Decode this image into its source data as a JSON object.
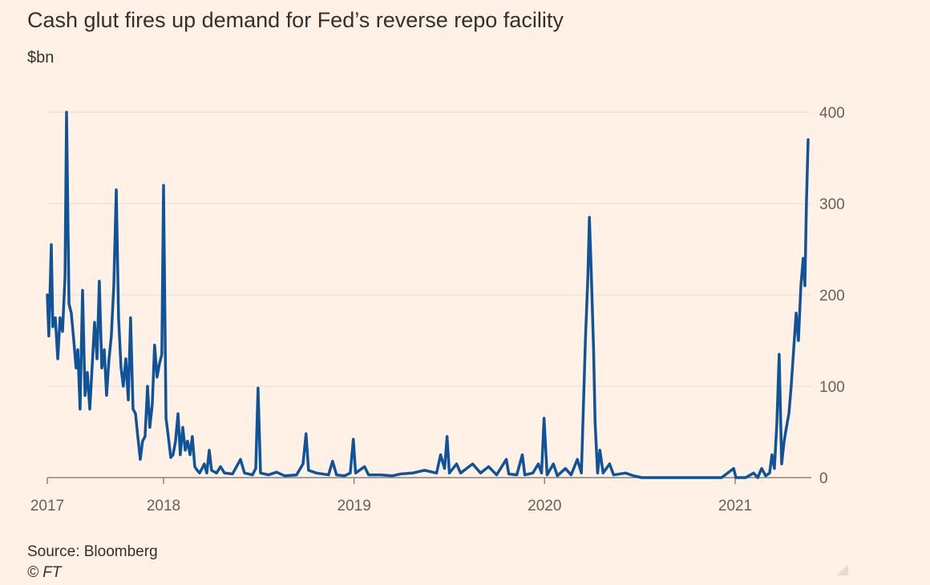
{
  "chart_data": {
    "type": "line",
    "title": "Cash glut fires up demand for Fed’s reverse repo facility",
    "subtitle": "$bn",
    "source": "Source: Bloomberg",
    "credit": "© FT",
    "color": "#0f5499",
    "xlim": [
      2017.39,
      2021.383
    ],
    "xticks": [
      {
        "value": 2017.39,
        "label": "2017"
      },
      2018,
      2019,
      2020,
      2021
    ],
    "ylim": [
      0,
      400
    ],
    "yticks": [
      0,
      100,
      200,
      300,
      400
    ],
    "grid": true,
    "x": [
      2017.39,
      2017.398,
      2017.411,
      2017.419,
      2017.432,
      2017.445,
      2017.457,
      2017.47,
      2017.483,
      2017.491,
      2017.504,
      2017.516,
      2017.529,
      2017.541,
      2017.55,
      2017.562,
      2017.575,
      2017.588,
      2017.6,
      2017.613,
      2017.625,
      2017.638,
      2017.651,
      2017.663,
      2017.676,
      2017.689,
      2017.701,
      2017.714,
      2017.726,
      2017.739,
      2017.752,
      2017.764,
      2017.777,
      2017.789,
      2017.802,
      2017.815,
      2017.827,
      2017.84,
      2017.853,
      2017.865,
      2017.878,
      2017.89,
      2017.903,
      2017.916,
      2017.928,
      2017.941,
      2017.953,
      2017.966,
      2017.979,
      2017.991,
      2018.0,
      2018.013,
      2018.025,
      2018.038,
      2018.05,
      2018.063,
      2018.076,
      2018.088,
      2018.101,
      2018.114,
      2018.126,
      2018.139,
      2018.151,
      2018.164,
      2018.177,
      2018.189,
      2018.202,
      2018.214,
      2018.227,
      2018.24,
      2018.252,
      2018.278,
      2018.299,
      2018.32,
      2018.362,
      2018.404,
      2018.425,
      2018.467,
      2018.484,
      2018.496,
      2018.509,
      2018.551,
      2018.593,
      2018.635,
      2018.698,
      2018.732,
      2018.748,
      2018.761,
      2018.803,
      2018.866,
      2018.887,
      2018.908,
      2018.95,
      2018.98,
      2018.996,
      2019.008,
      2019.055,
      2019.076,
      2019.139,
      2019.202,
      2019.244,
      2019.307,
      2019.37,
      2019.433,
      2019.454,
      2019.475,
      2019.488,
      2019.5,
      2019.538,
      2019.559,
      2019.622,
      2019.664,
      2019.706,
      2019.748,
      2019.799,
      2019.812,
      2019.854,
      2019.883,
      2019.896,
      2019.938,
      2019.967,
      2019.984,
      2019.997,
      2020.013,
      2020.046,
      2020.067,
      2020.109,
      2020.139,
      2020.172,
      2020.193,
      2020.214,
      2020.227,
      2020.235,
      2020.244,
      2020.257,
      2020.265,
      2020.278,
      2020.29,
      2020.307,
      2020.341,
      2020.362,
      2020.425,
      2020.467,
      2020.509,
      2020.719,
      2020.929,
      2020.992,
      2021.004,
      2021.055,
      2021.097,
      2021.118,
      2021.139,
      2021.16,
      2021.181,
      2021.193,
      2021.206,
      2021.219,
      2021.231,
      2021.244,
      2021.257,
      2021.269,
      2021.282,
      2021.294,
      2021.307,
      2021.32,
      2021.332,
      2021.345,
      2021.357,
      2021.366,
      2021.374,
      2021.383
    ],
    "values": [
      200,
      155,
      255,
      165,
      175,
      130,
      175,
      160,
      220,
      400,
      190,
      180,
      150,
      120,
      140,
      75,
      205,
      90,
      115,
      75,
      120,
      170,
      130,
      215,
      120,
      140,
      90,
      130,
      155,
      210,
      315,
      175,
      120,
      100,
      130,
      85,
      175,
      75,
      70,
      45,
      20,
      40,
      45,
      100,
      55,
      80,
      145,
      110,
      125,
      135,
      320,
      65,
      45,
      22,
      25,
      40,
      70,
      25,
      55,
      30,
      40,
      25,
      45,
      12,
      8,
      5,
      10,
      15,
      5,
      30,
      8,
      5,
      12,
      5,
      4,
      20,
      5,
      3,
      10,
      98,
      5,
      3,
      6,
      2,
      3,
      15,
      48,
      8,
      5,
      3,
      18,
      3,
      2,
      5,
      42,
      5,
      12,
      3,
      3,
      2,
      4,
      5,
      8,
      5,
      25,
      10,
      45,
      5,
      15,
      5,
      15,
      5,
      12,
      3,
      20,
      4,
      3,
      25,
      3,
      5,
      15,
      5,
      65,
      3,
      15,
      2,
      10,
      3,
      20,
      5,
      150,
      220,
      285,
      230,
      140,
      60,
      5,
      30,
      5,
      15,
      3,
      5,
      2,
      0,
      0,
      0,
      10,
      0,
      0,
      5,
      0,
      10,
      2,
      5,
      25,
      10,
      60,
      135,
      15,
      40,
      55,
      70,
      100,
      140,
      180,
      150,
      210,
      240,
      210,
      300,
      370
    ]
  }
}
